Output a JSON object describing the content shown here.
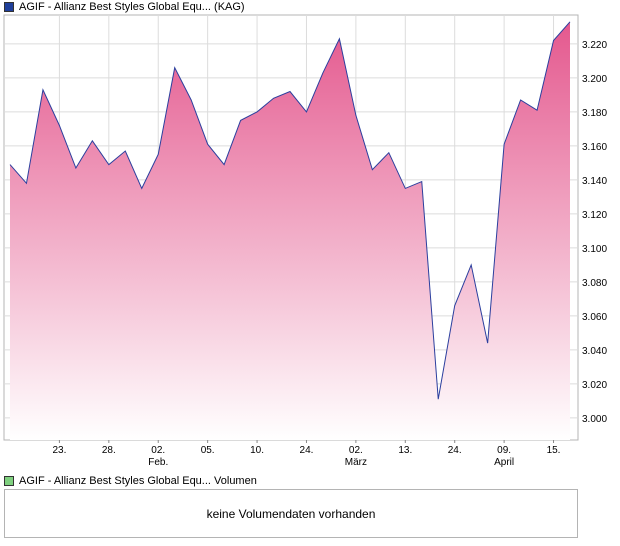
{
  "legend": {
    "price_label": "AGIF - Allianz Best Styles Global Equ... (KAG)",
    "price_color": "#1f3f9a",
    "volume_label": "AGIF - Allianz Best Styles Global Equ... Volumen",
    "volume_color": "#7fd07f"
  },
  "volume_panel": {
    "message": "keine Volumendaten vorhanden"
  },
  "chart_data": {
    "type": "area",
    "y_ticks": [
      "3.000",
      "3.020",
      "3.040",
      "3.060",
      "3.080",
      "3.100",
      "3.120",
      "3.140",
      "3.160",
      "3.180",
      "3.200",
      "3.220"
    ],
    "ylim": [
      2.987,
      3.237
    ],
    "x_ticks": [
      {
        "day": "23.",
        "month": "",
        "index": 3
      },
      {
        "day": "28.",
        "month": "",
        "index": 6
      },
      {
        "day": "02.",
        "month": "Feb.",
        "index": 9
      },
      {
        "day": "05.",
        "month": "",
        "index": 12
      },
      {
        "day": "10.",
        "month": "",
        "index": 15
      },
      {
        "day": "24.",
        "month": "",
        "index": 18
      },
      {
        "day": "02.",
        "month": "März",
        "index": 21
      },
      {
        "day": "13.",
        "month": "",
        "index": 24
      },
      {
        "day": "24.",
        "month": "",
        "index": 27
      },
      {
        "day": "09.",
        "month": "April",
        "index": 30
      },
      {
        "day": "15.",
        "month": "",
        "index": 33
      }
    ],
    "values": [
      3.149,
      3.138,
      3.193,
      3.172,
      3.147,
      3.163,
      3.149,
      3.157,
      3.135,
      3.155,
      3.206,
      3.187,
      3.161,
      3.149,
      3.175,
      3.18,
      3.188,
      3.192,
      3.18,
      3.203,
      3.223,
      3.178,
      3.146,
      3.156,
      3.135,
      3.139,
      3.011,
      3.066,
      3.09,
      3.044,
      3.161,
      3.187,
      3.181,
      3.222,
      3.233
    ],
    "line_color": "#2b3f9e",
    "fill_top_color": "#e4588e",
    "fill_bottom_color": "#ffffff",
    "grid": true
  }
}
